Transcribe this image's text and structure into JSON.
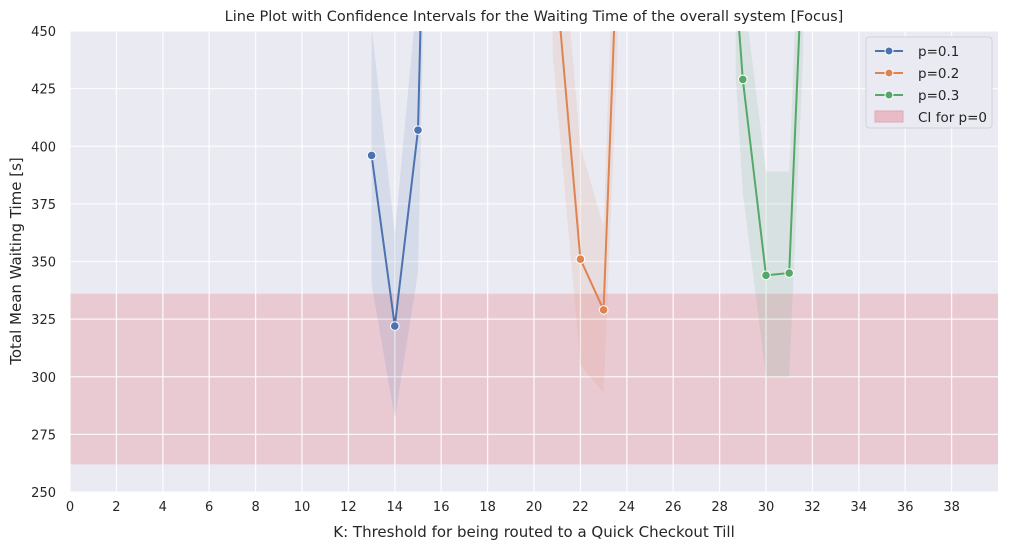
{
  "chart_data": {
    "type": "line",
    "title": "Line Plot with Confidence Intervals for the Waiting Time of the overall system [Focus]",
    "xlabel": "K: Threshold for being routed to a Quick Checkout Till",
    "ylabel": "Total Mean Waiting Time [s]",
    "xlim": [
      0,
      40
    ],
    "ylim": [
      250,
      450
    ],
    "xticks": [
      "0",
      "2",
      "4",
      "6",
      "8",
      "10",
      "12",
      "14",
      "16",
      "18",
      "20",
      "22",
      "24",
      "26",
      "28",
      "30",
      "32",
      "34",
      "36",
      "38"
    ],
    "yticks": [
      "250",
      "275",
      "300",
      "325",
      "350",
      "375",
      "400",
      "425",
      "450"
    ],
    "grid": true,
    "legend_position": "top-right",
    "reference_band": {
      "label": "CI for p=0",
      "lower": 262,
      "upper": 336,
      "color": "#e8bcc6"
    },
    "series": [
      {
        "name": "p=0.1",
        "color": "#4c72b0",
        "x": [
          13,
          14,
          15,
          15.2
        ],
        "y": [
          396,
          322,
          407,
          490
        ],
        "ci_lower": [
          340,
          282,
          345,
          440
        ],
        "ci_upper": [
          452,
          362,
          470,
          540
        ]
      },
      {
        "name": "p=0.2",
        "color": "#dd8452",
        "x": [
          20.8,
          22,
          23,
          23.6
        ],
        "y": [
          490,
          351,
          329,
          490
        ],
        "ci_lower": [
          440,
          305,
          293,
          440
        ],
        "ci_upper": [
          540,
          400,
          365,
          540
        ]
      },
      {
        "name": "p=0.3",
        "color": "#55a868",
        "x": [
          28.7,
          29,
          30,
          31,
          31.6
        ],
        "y": [
          470,
          429,
          344,
          345,
          490
        ],
        "ci_lower": [
          430,
          380,
          300,
          300,
          440
        ],
        "ci_upper": [
          520,
          470,
          389,
          389,
          540
        ]
      }
    ]
  }
}
